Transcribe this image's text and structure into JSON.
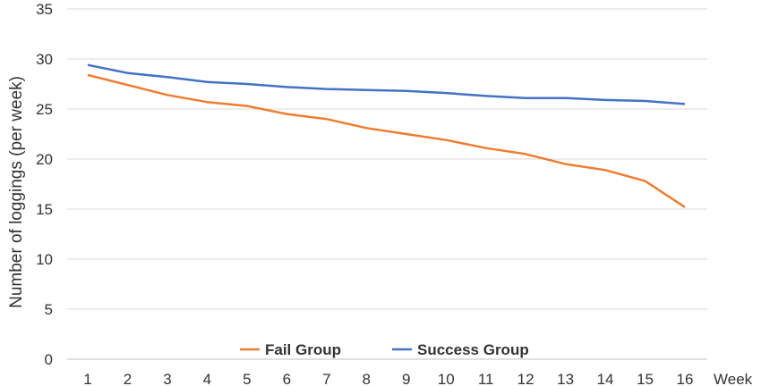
{
  "chart_data": {
    "type": "line",
    "title": "",
    "xlabel": "Week",
    "ylabel": "Number of loggings (per week)",
    "categories": [
      "1",
      "2",
      "3",
      "4",
      "5",
      "6",
      "7",
      "8",
      "9",
      "10",
      "11",
      "12",
      "13",
      "14",
      "15",
      "16"
    ],
    "ylim": [
      0,
      35
    ],
    "yticks": [
      "0",
      "5",
      "10",
      "15",
      "20",
      "25",
      "30",
      "35"
    ],
    "grid": "horizontal",
    "legend_position": "bottom",
    "series": [
      {
        "name": "Fail Group",
        "color": "#ED7D31",
        "values": [
          28.4,
          27.4,
          26.4,
          25.7,
          25.3,
          24.5,
          24.0,
          23.1,
          22.5,
          21.9,
          21.1,
          20.5,
          19.5,
          18.9,
          17.8,
          15.2
        ]
      },
      {
        "name": "Success Group",
        "color": "#4472C4",
        "values": [
          29.4,
          28.6,
          28.2,
          27.7,
          27.5,
          27.2,
          27.0,
          26.9,
          26.8,
          26.6,
          26.3,
          26.1,
          26.1,
          25.9,
          25.8,
          25.5
        ]
      }
    ]
  }
}
